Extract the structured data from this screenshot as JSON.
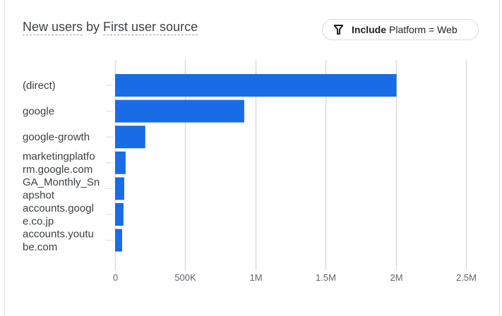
{
  "header": {
    "title_metric": "New users",
    "title_by": "by",
    "title_dimension": "First user source"
  },
  "filter_chip": {
    "icon": "filter-icon",
    "keyword": "Include",
    "condition": "Platform = Web"
  },
  "colors": {
    "bar": "#1a6be6",
    "grid": "#dadce0",
    "axis_text": "#5f6368",
    "label_text": "#3c4043"
  },
  "chart_data": {
    "type": "bar",
    "orientation": "horizontal",
    "title": "New users by First user source",
    "xlabel": "",
    "ylabel": "",
    "categories": [
      [
        "(direct)"
      ],
      [
        "google"
      ],
      [
        "google-growth"
      ],
      [
        "marketingplatfo",
        "rm.google.com"
      ],
      [
        "GA_Monthly_Sn",
        "apshot"
      ],
      [
        "accounts.googl",
        "e.co.jp"
      ],
      [
        "accounts.youtu",
        "be.com"
      ]
    ],
    "category_names": [
      "(direct)",
      "google",
      "google-growth",
      "marketingplatform.google.com",
      "GA_Monthly_Snapshot",
      "accounts.google.co.jp",
      "accounts.youtube.com"
    ],
    "values": [
      2005000,
      920000,
      215000,
      75000,
      65000,
      60000,
      50000
    ],
    "xlim": [
      0,
      2500000
    ],
    "xticks": [
      0,
      500000,
      1000000,
      1500000,
      2000000,
      2500000
    ],
    "xtick_labels": [
      "0",
      "500K",
      "1M",
      "1.5M",
      "2M",
      "2.5M"
    ],
    "grid": true,
    "legend": "none"
  }
}
